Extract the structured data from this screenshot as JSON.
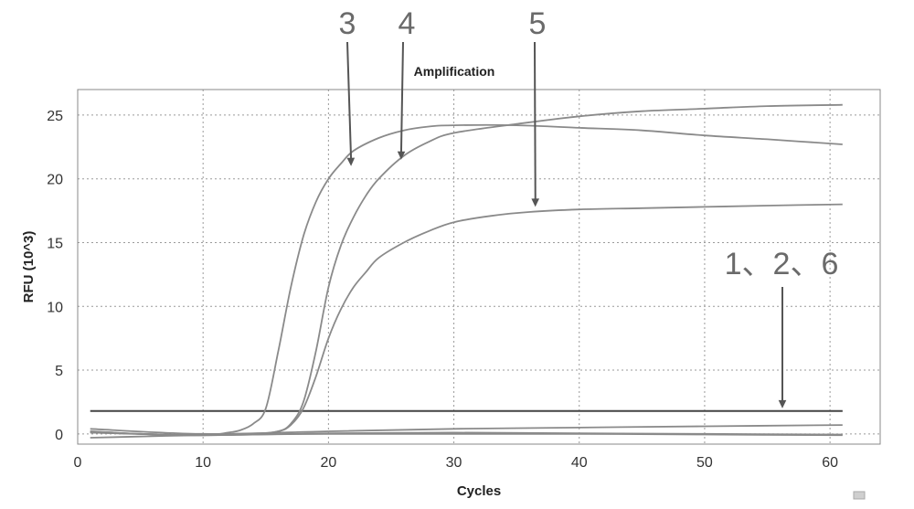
{
  "chart_data": {
    "type": "line",
    "title": "Amplification",
    "xlabel": "Cycles",
    "ylabel": "RFU (10^3)",
    "xlim": [
      0,
      64
    ],
    "ylim": [
      -0.8,
      27
    ],
    "x_ticks": [
      0,
      10,
      20,
      30,
      40,
      50,
      60
    ],
    "y_ticks": [
      0,
      5,
      10,
      15,
      20,
      25
    ],
    "grid": true,
    "threshold": 1.8,
    "series": [
      {
        "label": "3",
        "x": [
          1,
          5,
          10,
          12,
          13,
          14,
          15,
          16,
          17,
          18,
          19,
          20,
          21,
          22,
          24,
          26,
          28,
          30,
          35,
          40,
          45,
          50,
          55,
          61
        ],
        "y": [
          0.2,
          0.0,
          -0.1,
          0.1,
          0.3,
          0.8,
          2.0,
          6.5,
          11.5,
          15.5,
          18.2,
          20.0,
          21.2,
          22.2,
          23.2,
          23.8,
          24.1,
          24.2,
          24.2,
          24.0,
          23.8,
          23.4,
          23.1,
          22.7
        ]
      },
      {
        "label": "4",
        "x": [
          1,
          5,
          10,
          14,
          16,
          17,
          18,
          19,
          20,
          21,
          22,
          23,
          24,
          26,
          28,
          30,
          35,
          40,
          45,
          50,
          55,
          61
        ],
        "y": [
          0.2,
          0.0,
          -0.1,
          0.0,
          0.2,
          0.8,
          2.5,
          6.5,
          11.5,
          14.8,
          17.0,
          18.7,
          20.0,
          21.8,
          22.9,
          23.6,
          24.3,
          24.9,
          25.3,
          25.5,
          25.7,
          25.8
        ]
      },
      {
        "label": "5",
        "x": [
          1,
          5,
          10,
          14,
          16,
          17,
          18,
          19,
          20,
          21,
          22,
          23,
          24,
          26,
          28,
          30,
          33,
          36,
          40,
          45,
          50,
          55,
          61
        ],
        "y": [
          0.1,
          0.0,
          -0.1,
          0.0,
          0.2,
          0.7,
          2.0,
          4.5,
          7.5,
          9.8,
          11.5,
          12.7,
          13.8,
          15.0,
          15.9,
          16.6,
          17.1,
          17.4,
          17.6,
          17.7,
          17.8,
          17.9,
          18.0
        ]
      },
      {
        "label": "1",
        "x": [
          1,
          10,
          20,
          30,
          40,
          50,
          61
        ],
        "y": [
          0.4,
          0.0,
          0.2,
          0.4,
          0.5,
          0.6,
          0.7
        ]
      },
      {
        "label": "2",
        "x": [
          1,
          10,
          20,
          30,
          40,
          50,
          61
        ],
        "y": [
          -0.3,
          -0.1,
          0.0,
          0.0,
          0.0,
          -0.05,
          -0.1
        ]
      },
      {
        "label": "6",
        "x": [
          1,
          10,
          20,
          30,
          40,
          50,
          61
        ],
        "y": [
          0.1,
          -0.1,
          0.05,
          0.1,
          0.05,
          0.0,
          -0.05
        ]
      }
    ],
    "annotations": [
      {
        "text": "3",
        "arrow_to": [
          21.8,
          21.0
        ]
      },
      {
        "text": "4",
        "arrow_to": [
          25.8,
          21.5
        ]
      },
      {
        "text": "5",
        "arrow_to": [
          36.5,
          17.8
        ]
      },
      {
        "text": "1、2、6",
        "arrow_to": [
          56.2,
          2.0
        ]
      }
    ]
  }
}
